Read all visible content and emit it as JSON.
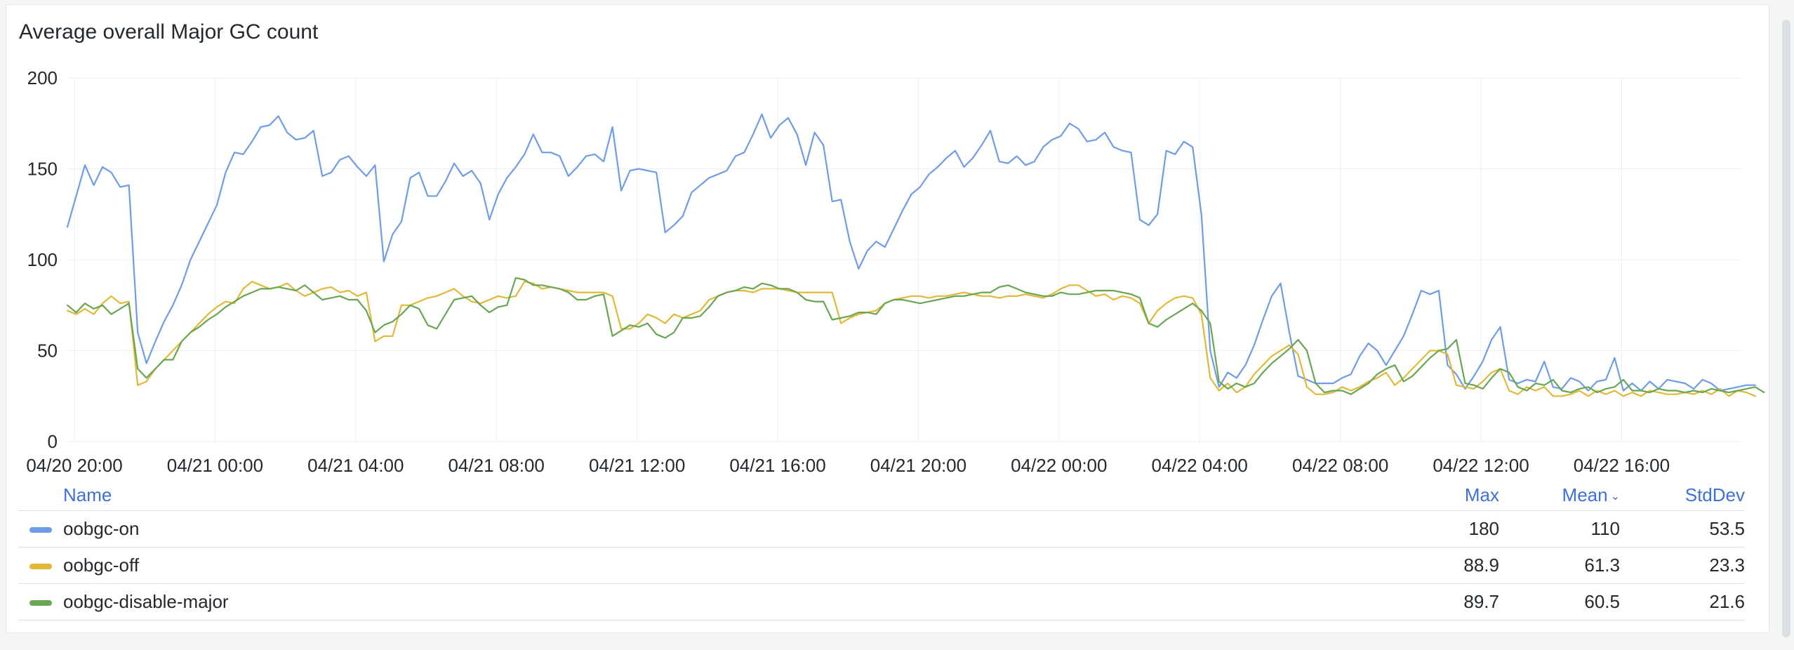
{
  "panel": {
    "title": "Average overall Major GC count"
  },
  "colors": {
    "background": "#ffffff",
    "grid": "#eceef1",
    "header_link": "#3d71d9"
  },
  "chart_data": {
    "type": "line",
    "title": "Average overall Major GC count",
    "xlabel": "",
    "ylabel": "",
    "ylim": [
      0,
      200
    ],
    "yticks": [
      0,
      50,
      100,
      150,
      200
    ],
    "xlim": [
      "04/20 20:00",
      "04/22 18:40"
    ],
    "x_start_hour": -0.2,
    "x_step_hours": 0.25,
    "xtick_labels": [
      "04/20 20:00",
      "04/21 00:00",
      "04/21 04:00",
      "04/21 08:00",
      "04/21 12:00",
      "04/21 16:00",
      "04/21 20:00",
      "04/22 00:00",
      "04/22 04:00",
      "04/22 08:00",
      "04/22 12:00",
      "04/22 16:00"
    ],
    "xtick_hours": [
      0,
      4,
      8,
      12,
      16,
      20,
      24,
      28,
      32,
      36,
      40,
      44
    ],
    "grid": true,
    "series": [
      {
        "name": "oobgc-on",
        "color": "#6e9ce8",
        "values": [
          118,
          135,
          152,
          141,
          151,
          148,
          140,
          141,
          60,
          43,
          55,
          66,
          75,
          86,
          100,
          110,
          120,
          130,
          148,
          159,
          158,
          165,
          173,
          174,
          179,
          170,
          166,
          167,
          171,
          146,
          148,
          155,
          157,
          151,
          146,
          152,
          99,
          114,
          121,
          145,
          148,
          135,
          135,
          143,
          153,
          146,
          149,
          142,
          122,
          136,
          145,
          151,
          158,
          169,
          159,
          159,
          157,
          146,
          151,
          157,
          158,
          154,
          173,
          138,
          149,
          150,
          149,
          148,
          115,
          119,
          124,
          137,
          141,
          145,
          147,
          149,
          157,
          159,
          169,
          180,
          167,
          174,
          178,
          169,
          152,
          170,
          163,
          132,
          133,
          110,
          95,
          105,
          110,
          107,
          117,
          127,
          136,
          140,
          147,
          151,
          156,
          160,
          151,
          156,
          163,
          171,
          154,
          153,
          157,
          152,
          154,
          162,
          166,
          168,
          175,
          172,
          165,
          166,
          170,
          162,
          160,
          159,
          122,
          119,
          125,
          160,
          158,
          165,
          162,
          125,
          50,
          30,
          38,
          35,
          42,
          53,
          67,
          80,
          87,
          60,
          36,
          34,
          32,
          32,
          32,
          35,
          37,
          47,
          54,
          50,
          42,
          50,
          58,
          70,
          83,
          81,
          83,
          42,
          37,
          29,
          36,
          44,
          56,
          63,
          34,
          32,
          34,
          33,
          44,
          30,
          29,
          35,
          33,
          28,
          33,
          34,
          46,
          28,
          32,
          28,
          33,
          29,
          34,
          33,
          32,
          29,
          34,
          32,
          28,
          29,
          30,
          31,
          31
        ]
      },
      {
        "name": "oobgc-off",
        "color": "#e1b838",
        "values": [
          72,
          70,
          73,
          70,
          76,
          80,
          76,
          77,
          31,
          33,
          40,
          45,
          50,
          55,
          60,
          65,
          70,
          74,
          77,
          76,
          84,
          88,
          86,
          84,
          85,
          87,
          83,
          80,
          82,
          84,
          85,
          82,
          83,
          80,
          82,
          55,
          58,
          58,
          75,
          75,
          77,
          79,
          80,
          82,
          84,
          80,
          77,
          76,
          78,
          80,
          79,
          80,
          88,
          87,
          84,
          85,
          84,
          83,
          82,
          82,
          82,
          82,
          80,
          62,
          62,
          65,
          70,
          68,
          65,
          70,
          68,
          70,
          72,
          78,
          80,
          82,
          83,
          83,
          82,
          84,
          84,
          84,
          83,
          82,
          82,
          82,
          82,
          82,
          65,
          68,
          70,
          71,
          72,
          76,
          78,
          79,
          80,
          80,
          79,
          80,
          80,
          81,
          82,
          81,
          80,
          80,
          79,
          80,
          80,
          81,
          80,
          79,
          81,
          84,
          86,
          86,
          83,
          80,
          81,
          78,
          80,
          79,
          76,
          65,
          72,
          76,
          79,
          80,
          79,
          70,
          35,
          28,
          32,
          27,
          30,
          37,
          42,
          47,
          50,
          53,
          48,
          30,
          26,
          26,
          27,
          30,
          28,
          30,
          33,
          35,
          38,
          31,
          35,
          40,
          45,
          50,
          50,
          48,
          31,
          30,
          29,
          33,
          38,
          40,
          28,
          26,
          30,
          28,
          30,
          25,
          25,
          26,
          28,
          25,
          28,
          26,
          28,
          25,
          27,
          25,
          28,
          27,
          26,
          26,
          27,
          26,
          28,
          26,
          29,
          25,
          28,
          27,
          25
        ]
      },
      {
        "name": "oobgc-disable-major",
        "color": "#69a652",
        "values": [
          75,
          71,
          76,
          73,
          75,
          70,
          73,
          76,
          40,
          35,
          40,
          45,
          45,
          55,
          60,
          63,
          67,
          70,
          74,
          77,
          80,
          82,
          84,
          84,
          85,
          84,
          83,
          86,
          82,
          78,
          79,
          80,
          78,
          78,
          72,
          60,
          64,
          66,
          70,
          75,
          73,
          64,
          62,
          70,
          78,
          79,
          80,
          75,
          71,
          74,
          75,
          90,
          89,
          86,
          86,
          85,
          84,
          82,
          78,
          78,
          80,
          81,
          58,
          61,
          64,
          63,
          65,
          59,
          57,
          60,
          68,
          68,
          69,
          74,
          80,
          82,
          83,
          85,
          84,
          87,
          86,
          84,
          84,
          82,
          78,
          77,
          77,
          67,
          68,
          69,
          71,
          71,
          70,
          76,
          78,
          78,
          77,
          76,
          77,
          78,
          79,
          80,
          80,
          81,
          82,
          82,
          85,
          86,
          84,
          82,
          81,
          80,
          80,
          82,
          81,
          81,
          82,
          83,
          83,
          83,
          82,
          81,
          79,
          65,
          63,
          67,
          70,
          73,
          76,
          72,
          65,
          33,
          29,
          32,
          30,
          32,
          38,
          43,
          47,
          51,
          56,
          50,
          32,
          27,
          28,
          28,
          26,
          29,
          32,
          37,
          40,
          42,
          33,
          36,
          41,
          46,
          50,
          51,
          56,
          32,
          31,
          29,
          35,
          40,
          38,
          30,
          28,
          32,
          31,
          34,
          28,
          27,
          29,
          30,
          27,
          29,
          30,
          34,
          28,
          28,
          27,
          29,
          28,
          28,
          27,
          28,
          27,
          29,
          28,
          27,
          28,
          29,
          30,
          27
        ]
      }
    ]
  },
  "legend": {
    "headers": {
      "name": "Name",
      "max": "Max",
      "mean": "Mean",
      "stddev": "StdDev"
    },
    "rows": [
      {
        "name": "oobgc-on",
        "color": "#6e9ce8",
        "max": "180",
        "mean": "110",
        "stddev": "53.5"
      },
      {
        "name": "oobgc-off",
        "color": "#e1b838",
        "max": "88.9",
        "mean": "61.3",
        "stddev": "23.3"
      },
      {
        "name": "oobgc-disable-major",
        "color": "#69a652",
        "max": "89.7",
        "mean": "60.5",
        "stddev": "21.6"
      }
    ]
  }
}
